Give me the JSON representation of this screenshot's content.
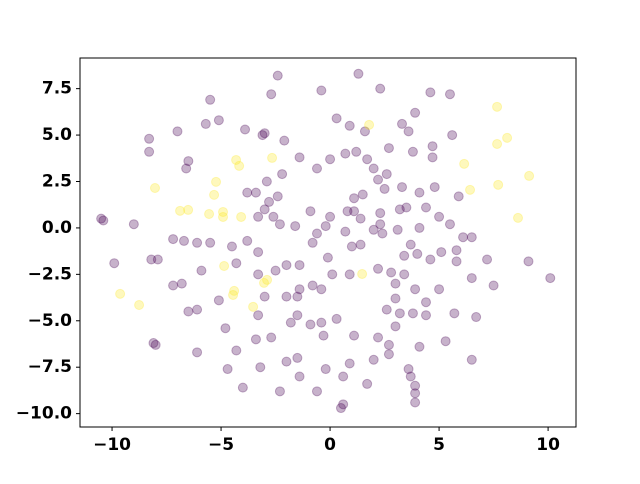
{
  "chart_data": {
    "type": "scatter",
    "xlim": [
      -11.47,
      11.28
    ],
    "ylim": [
      -10.72,
      9.15
    ],
    "xticks": [
      {
        "value": -10,
        "label": "−10"
      },
      {
        "value": -5,
        "label": "−5"
      },
      0,
      5,
      10
    ],
    "yticks": [
      {
        "value": -10,
        "label": "−10.0"
      },
      {
        "value": -7.5,
        "label": "−7.5"
      },
      {
        "value": -5,
        "label": "−5.0"
      },
      {
        "value": -2.5,
        "label": "−2.5"
      },
      {
        "value": 0,
        "label": "0.0"
      },
      2.5,
      {
        "value": 5,
        "label": "5.0"
      },
      7.5
    ],
    "opacity": 0.3,
    "series": [
      {
        "color": "#440154",
        "x": [
          -2.4,
          -2.7,
          -0.4,
          1.3,
          2.3,
          5.5,
          4.6,
          3.9,
          3.3,
          1.6,
          0.9,
          0.3,
          -3.0,
          -3.1,
          -2.1,
          -5.5,
          -5.7,
          -5.1,
          -7.0,
          -8.3,
          -8.3,
          -3.9,
          -6.5,
          -6.6,
          -1.4,
          -2.2,
          -0.6,
          0.0,
          0.7,
          1.2,
          1.7,
          2.0,
          2.6,
          2.7,
          3.6,
          3.8,
          4.7,
          4.7,
          5.6,
          4.8,
          5.9,
          4.1,
          3.3,
          2.5,
          1.5,
          1.1,
          2.2,
          1.1,
          0.8,
          2.3,
          2.3,
          3.2,
          3.5,
          4.4,
          5.0,
          5.5,
          5.8,
          5.1,
          6.1,
          6.5,
          7.2,
          7.5,
          9.1,
          10.1,
          6.5,
          5.8,
          4.6,
          4.1,
          4.0,
          3.4,
          3.7,
          3.1,
          2.4,
          2.0,
          1.4,
          1.0,
          1.4,
          0.7,
          0.0,
          -0.2,
          -0.9,
          -0.6,
          -0.8,
          -1.6,
          -2.3,
          -3.0,
          -2.8,
          -2.9,
          -2.4,
          -3.4,
          -3.8,
          -3.3,
          -2.6,
          -3.8,
          -4.5,
          -5.5,
          -6.1,
          -6.7,
          -7.2,
          -7.2,
          -6.8,
          -7.9,
          -9.9,
          -5.9,
          -4.3,
          -2.5,
          -3.3,
          -1.4,
          -2.0,
          -3.0,
          -2.0,
          -1.5,
          -1.4,
          -0.8,
          -0.4,
          -0.1,
          0.1,
          0.9,
          2.2,
          2.8,
          3.4,
          3.0,
          3.0,
          3.9,
          4.4,
          5.0,
          4.4,
          3.2,
          2.6,
          3.0,
          3.8,
          5.3,
          5.7,
          6.7,
          6.5,
          2.7,
          2.0,
          2.7,
          4.1,
          2.2,
          1.1,
          0.3,
          -0.4,
          -0.9,
          -0.3,
          -1.5,
          -1.8,
          -3.3,
          -4.8,
          -4.3,
          -3.4,
          -2.7,
          -2.0,
          -1.5,
          -2.3,
          -1.4,
          -0.2,
          0.9,
          0.6,
          0.5,
          0.6,
          1.7,
          3.6,
          3.7,
          3.9,
          3.9,
          3.9,
          -0.6,
          -4.0,
          -4.7,
          -3.2,
          -5.1,
          -6.1,
          -6.5,
          -6.1,
          -8.1,
          -8.0,
          -9.0,
          -10.5,
          -10.4,
          -8.2,
          -3.3
        ],
        "y": [
          8.2,
          7.2,
          7.4,
          8.3,
          7.5,
          7.2,
          7.3,
          6.2,
          5.6,
          5.2,
          5.5,
          5.9,
          5.1,
          5.0,
          4.7,
          6.9,
          5.6,
          5.8,
          5.2,
          4.8,
          4.1,
          5.3,
          3.6,
          3.2,
          3.8,
          2.9,
          3.2,
          3.7,
          4.0,
          4.1,
          3.7,
          3.2,
          2.9,
          4.3,
          5.2,
          4.1,
          3.8,
          4.4,
          5.0,
          2.2,
          1.7,
          1.9,
          2.2,
          2.1,
          1.8,
          1.6,
          2.6,
          0.9,
          0.9,
          0.8,
          0.2,
          1.0,
          1.1,
          1.1,
          0.6,
          0.2,
          -1.2,
          -1.3,
          -0.5,
          -0.5,
          -1.7,
          -3.1,
          -1.8,
          -2.7,
          -2.7,
          -1.8,
          -1.7,
          0.0,
          -1.4,
          -1.5,
          -0.9,
          -0.1,
          -0.3,
          -0.1,
          -0.9,
          -1.0,
          0.5,
          -0.2,
          0.6,
          0.1,
          0.9,
          -0.3,
          -0.8,
          0.1,
          0.2,
          1.0,
          1.4,
          2.5,
          1.7,
          1.9,
          1.9,
          0.6,
          0.6,
          -0.7,
          -1.0,
          -0.8,
          -0.8,
          -0.7,
          -0.6,
          -3.1,
          -3.0,
          -1.7,
          -1.9,
          -2.3,
          -1.9,
          -2.3,
          -2.5,
          -2.0,
          -2.0,
          -3.7,
          -3.7,
          -3.7,
          -3.3,
          -3.1,
          -3.3,
          -1.6,
          -2.5,
          -2.5,
          -2.2,
          -2.4,
          -2.5,
          -3.0,
          -3.8,
          -3.3,
          -4.0,
          -3.3,
          -4.7,
          -4.6,
          -4.4,
          -5.3,
          -4.6,
          -6.1,
          -4.6,
          -4.8,
          -7.1,
          -6.8,
          -7.1,
          -6.3,
          -6.4,
          -5.9,
          -5.8,
          -4.9,
          -5.1,
          -5.2,
          -5.8,
          -4.7,
          -5.1,
          -4.7,
          -5.4,
          -6.6,
          -6.0,
          -5.9,
          -7.2,
          -7.0,
          -8.8,
          -8.0,
          -7.6,
          -7.3,
          -8.0,
          -9.7,
          -9.5,
          -8.4,
          -7.6,
          -8.0,
          -8.5,
          -8.9,
          -9.4,
          -8.8,
          -8.6,
          -7.6,
          -7.5,
          -3.9,
          -4.4,
          -4.5,
          -6.7,
          -6.2,
          -6.3,
          0.2,
          0.5,
          0.4,
          -1.7,
          -1.3
        ]
      },
      {
        "color": "#fde725",
        "x": [
          7.66,
          7.66,
          8.12,
          6.15,
          6.42,
          7.71,
          9.13,
          8.62,
          1.79,
          -8.03,
          -6.88,
          -6.51,
          -5.23,
          -4.91,
          -4.91,
          -5.55,
          -4.31,
          -4.17,
          -5.32,
          -4.08,
          -2.66,
          -9.63,
          -8.76,
          -4.86,
          -4.4,
          -4.45,
          -3.03,
          -2.89,
          -3.53,
          1.47
        ],
        "y": [
          6.52,
          4.52,
          4.85,
          3.45,
          2.05,
          2.32,
          2.8,
          0.54,
          5.55,
          2.15,
          0.92,
          0.97,
          2.48,
          0.86,
          0.59,
          0.75,
          3.66,
          3.34,
          1.78,
          0.59,
          3.77,
          -3.55,
          -4.15,
          -2.05,
          -3.39,
          -3.61,
          -2.96,
          -2.8,
          -4.25,
          -2.48
        ]
      }
    ]
  }
}
